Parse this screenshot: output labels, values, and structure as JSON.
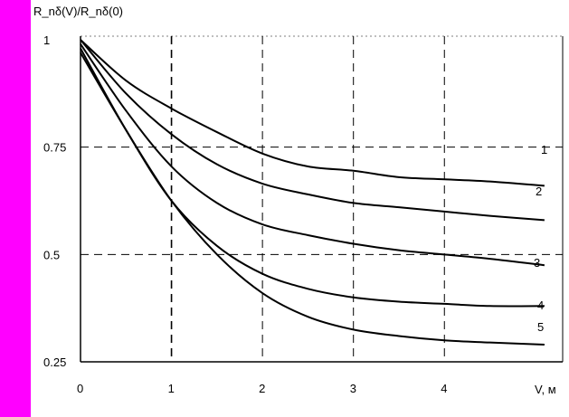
{
  "colors": {
    "frame_background": "#FF00FF",
    "plot_background": "#FFFFFF",
    "ink": "#000000"
  },
  "chart_data": {
    "type": "line",
    "title": "",
    "ylabel": "R_nδ(V)/R_nδ(0)",
    "xlabel": "V, м",
    "xlim": [
      0,
      5.3
    ],
    "ylim": [
      0.25,
      1
    ],
    "x_ticks": [
      0,
      1,
      2,
      3,
      4
    ],
    "x_tick_labels": [
      "0",
      "1",
      "2",
      "3",
      "4"
    ],
    "y_ticks": [
      0.25,
      0.5,
      0.75,
      1
    ],
    "y_tick_labels": [
      "0.25",
      "0.5",
      "0.75",
      "1"
    ],
    "grid": "dashed at x = 1, 2, 3, 4 and y = 0.5, 0.75",
    "legend": "curve numbers written at the right ends of the curves",
    "series": [
      {
        "name": "1",
        "x": [
          0,
          0.5,
          1,
          1.5,
          2,
          2.5,
          3,
          3.5,
          4,
          4.5,
          5.1
        ],
        "y": [
          1,
          0.905,
          0.84,
          0.785,
          0.735,
          0.705,
          0.695,
          0.68,
          0.675,
          0.67,
          0.66
        ]
      },
      {
        "name": "2",
        "x": [
          0,
          0.5,
          1,
          1.5,
          2,
          2.5,
          3,
          3.5,
          4,
          4.5,
          5.1
        ],
        "y": [
          1,
          0.875,
          0.78,
          0.71,
          0.665,
          0.64,
          0.62,
          0.61,
          0.6,
          0.59,
          0.58
        ]
      },
      {
        "name": "3",
        "x": [
          0,
          0.5,
          1,
          1.5,
          2,
          2.5,
          3,
          3.5,
          4,
          4.5,
          5.1
        ],
        "y": [
          0.99,
          0.835,
          0.705,
          0.62,
          0.57,
          0.545,
          0.525,
          0.51,
          0.5,
          0.49,
          0.475
        ]
      },
      {
        "name": "4",
        "x": [
          0,
          0.5,
          1,
          1.5,
          2,
          2.5,
          3,
          3.5,
          4,
          4.5,
          5.1
        ],
        "y": [
          0.98,
          0.79,
          0.625,
          0.52,
          0.455,
          0.42,
          0.4,
          0.39,
          0.385,
          0.38,
          0.38
        ]
      },
      {
        "name": "5",
        "x": [
          0,
          0.5,
          1,
          1.5,
          2,
          2.5,
          3,
          3.5,
          4,
          4.5,
          5.1
        ],
        "y": [
          0.97,
          0.79,
          0.625,
          0.5,
          0.41,
          0.355,
          0.325,
          0.31,
          0.3,
          0.295,
          0.29
        ]
      }
    ]
  }
}
